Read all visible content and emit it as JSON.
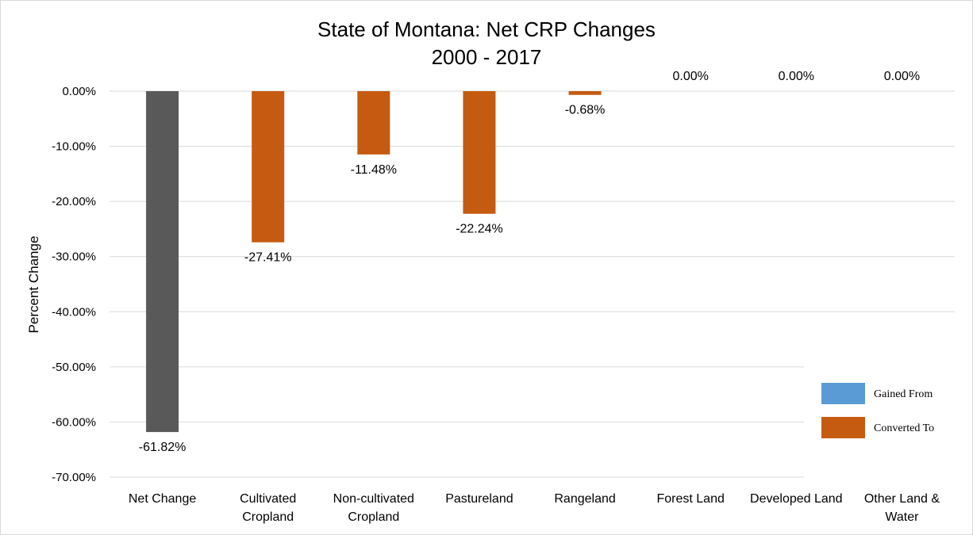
{
  "chart_data": {
    "type": "bar",
    "title": "State of Montana: Net CRP Changes",
    "subtitle": "2000 - 2017",
    "ylabel": "Percent Change",
    "xlabel": "",
    "ylim": [
      -70,
      0
    ],
    "yticks": [
      0,
      -10,
      -20,
      -30,
      -40,
      -50,
      -60,
      -70
    ],
    "ytick_labels": [
      "0.00%",
      "-10.00%",
      "-20.00%",
      "-30.00%",
      "-40.00%",
      "-50.00%",
      "-60.00%",
      "-70.00%"
    ],
    "grid": true,
    "legend_position": "right",
    "categories": [
      [
        "Net Change"
      ],
      [
        "Cultivated",
        "Cropland"
      ],
      [
        "Non-cultivated",
        "Cropland"
      ],
      [
        "Pastureland"
      ],
      [
        "Rangeland"
      ],
      [
        "Forest Land"
      ],
      [
        "Developed Land"
      ],
      [
        "Other Land &",
        "Water"
      ]
    ],
    "values": [
      -61.82,
      -27.41,
      -11.48,
      -22.24,
      -0.68,
      0.0,
      0.0,
      0.0
    ],
    "data_labels": [
      "-61.82%",
      "-27.41%",
      "-11.48%",
      "-22.24%",
      "-0.68%",
      "0.00%",
      "0.00%",
      "0.00%"
    ],
    "bar_series": [
      "total",
      "converted",
      "converted",
      "converted",
      "converted",
      "converted",
      "converted",
      "converted"
    ],
    "series": [
      {
        "name": "Gained From",
        "color": "#5b9bd5"
      },
      {
        "name": "Converted To",
        "color": "#c55a11"
      }
    ],
    "total_color": "#595959"
  }
}
